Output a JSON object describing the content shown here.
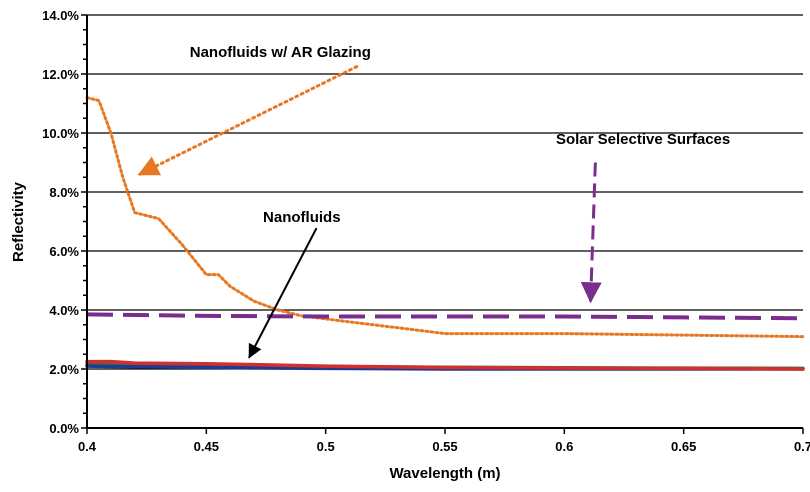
{
  "chart_data": {
    "type": "line",
    "title": "",
    "xlabel": "Wavelength (m)",
    "ylabel": "Reflectivity",
    "xlim": [
      0.4,
      0.7
    ],
    "ylim": [
      0,
      14
    ],
    "x_ticks": [
      0.4,
      0.45,
      0.5,
      0.55,
      0.6,
      0.65,
      0.7
    ],
    "x_tick_labels": [
      "0.4",
      "0.45",
      "0.5",
      "0.55",
      "0.6",
      "0.65",
      "0.7"
    ],
    "y_ticks": [
      0,
      2,
      4,
      6,
      8,
      10,
      12,
      14
    ],
    "y_tick_labels": [
      "0.0%",
      "2.0%",
      "4.0%",
      "6.0%",
      "8.0%",
      "10.0%",
      "12.0%",
      "14.0%"
    ],
    "grid": "horizontal",
    "legend": "none",
    "series": [
      {
        "color": "#E87722",
        "style": "dotted",
        "points": [
          [
            0.4,
            11.2
          ],
          [
            0.405,
            11.1
          ],
          [
            0.41,
            10.0
          ],
          [
            0.415,
            8.5
          ],
          [
            0.42,
            7.3
          ],
          [
            0.43,
            7.1
          ],
          [
            0.44,
            6.2
          ],
          [
            0.45,
            5.2
          ],
          [
            0.455,
            5.2
          ],
          [
            0.46,
            4.8
          ],
          [
            0.47,
            4.3
          ],
          [
            0.48,
            4.0
          ],
          [
            0.49,
            3.8
          ],
          [
            0.5,
            3.7
          ],
          [
            0.52,
            3.5
          ],
          [
            0.54,
            3.3
          ],
          [
            0.55,
            3.2
          ],
          [
            0.6,
            3.2
          ],
          [
            0.65,
            3.15
          ],
          [
            0.7,
            3.1
          ]
        ]
      },
      {
        "color": "#7B2D8E",
        "style": "dashed",
        "points": [
          [
            0.4,
            3.85
          ],
          [
            0.45,
            3.8
          ],
          [
            0.5,
            3.78
          ],
          [
            0.55,
            3.78
          ],
          [
            0.6,
            3.78
          ],
          [
            0.65,
            3.75
          ],
          [
            0.7,
            3.72
          ]
        ]
      },
      {
        "color": "#2E7D32",
        "style": "solid",
        "points": [
          [
            0.4,
            2.15
          ],
          [
            0.45,
            2.12
          ],
          [
            0.5,
            2.08
          ],
          [
            0.55,
            2.06
          ],
          [
            0.6,
            2.04
          ],
          [
            0.65,
            2.03
          ],
          [
            0.7,
            2.02
          ]
        ]
      },
      {
        "color": "#1F3A93",
        "style": "solid",
        "points": [
          [
            0.4,
            2.1
          ],
          [
            0.45,
            2.05
          ],
          [
            0.5,
            2.02
          ],
          [
            0.55,
            2.0
          ],
          [
            0.6,
            2.0
          ],
          [
            0.65,
            2.0
          ],
          [
            0.7,
            2.0
          ]
        ]
      },
      {
        "color": "#D32F2F",
        "style": "solid",
        "points": [
          [
            0.4,
            2.25
          ],
          [
            0.41,
            2.25
          ],
          [
            0.42,
            2.2
          ],
          [
            0.45,
            2.18
          ],
          [
            0.5,
            2.1
          ],
          [
            0.55,
            2.05
          ],
          [
            0.6,
            2.03
          ],
          [
            0.65,
            2.02
          ],
          [
            0.7,
            2.0
          ]
        ]
      }
    ],
    "annotations": [
      {
        "text": "Nanofluids w/ AR Glazing",
        "at": [
          0.481,
          12.75
        ],
        "arrow_from": [
          0.513,
          12.25
        ],
        "arrow_to": [
          0.422,
          8.6
        ],
        "arrow_color": "#E87722",
        "arrow_style": "dotted"
      },
      {
        "text": "Solar Selective Surfaces",
        "at": [
          0.633,
          9.8
        ],
        "arrow_from": [
          0.613,
          9.0
        ],
        "arrow_to": [
          0.611,
          4.3
        ],
        "arrow_color": "#7B2D8E",
        "arrow_style": "dashed"
      },
      {
        "text": "Nanofluids",
        "at": [
          0.49,
          7.15
        ],
        "arrow_from": [
          0.496,
          6.75
        ],
        "arrow_to": [
          0.468,
          2.4
        ],
        "arrow_color": "#000000",
        "arrow_style": "solid"
      }
    ]
  }
}
